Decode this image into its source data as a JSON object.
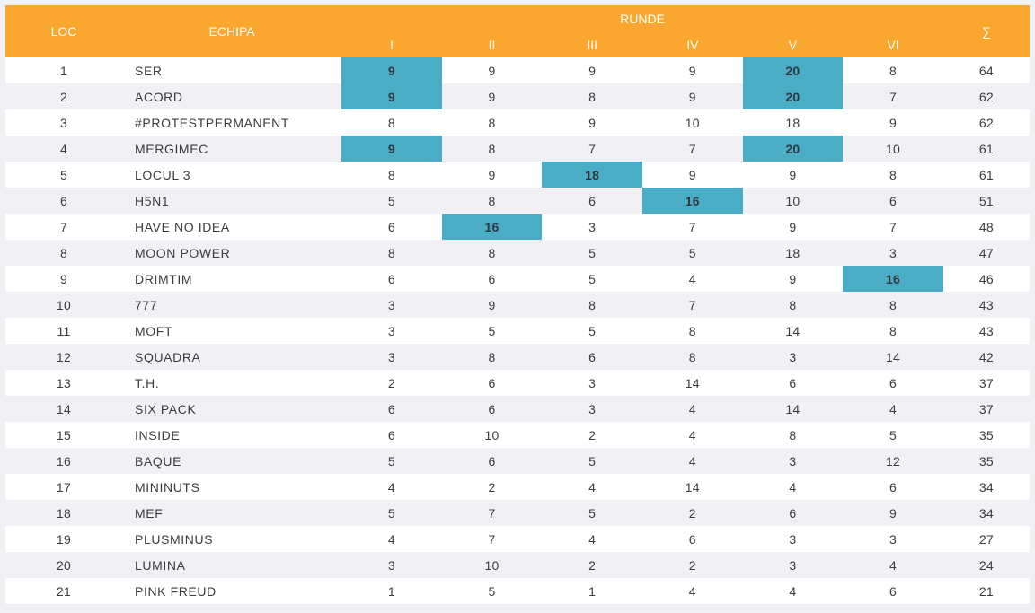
{
  "header": {
    "loc": "LOC",
    "team": "ECHIPA",
    "rounds_title": "RUNDE",
    "rounds": [
      "I",
      "II",
      "III",
      "IV",
      "V",
      "VI"
    ],
    "sum": "∑"
  },
  "colors": {
    "header_bg": "#faa72f",
    "highlight": "#4bacc6"
  },
  "rows": [
    {
      "loc": "1",
      "team": "SER",
      "scores": [
        "9",
        "9",
        "9",
        "9",
        "20",
        "8"
      ],
      "total": "64",
      "highlight": [
        0,
        4
      ]
    },
    {
      "loc": "2",
      "team": "ACORD",
      "scores": [
        "9",
        "9",
        "8",
        "9",
        "20",
        "7"
      ],
      "total": "62",
      "highlight": [
        0,
        4
      ]
    },
    {
      "loc": "3",
      "team": "#PROTESTPERMANENT",
      "scores": [
        "8",
        "8",
        "9",
        "10",
        "18",
        "9"
      ],
      "total": "62",
      "highlight": []
    },
    {
      "loc": "4",
      "team": "MERGIMEC",
      "scores": [
        "9",
        "8",
        "7",
        "7",
        "20",
        "10"
      ],
      "total": "61",
      "highlight": [
        0,
        4
      ]
    },
    {
      "loc": "5",
      "team": "LOCUL 3",
      "scores": [
        "8",
        "9",
        "18",
        "9",
        "9",
        "8"
      ],
      "total": "61",
      "highlight": [
        2
      ]
    },
    {
      "loc": "6",
      "team": "H5N1",
      "scores": [
        "5",
        "8",
        "6",
        "16",
        "10",
        "6"
      ],
      "total": "51",
      "highlight": [
        3
      ]
    },
    {
      "loc": "7",
      "team": "HAVE NO IDEA",
      "scores": [
        "6",
        "16",
        "3",
        "7",
        "9",
        "7"
      ],
      "total": "48",
      "highlight": [
        1
      ]
    },
    {
      "loc": "8",
      "team": "MOON POWER",
      "scores": [
        "8",
        "8",
        "5",
        "5",
        "18",
        "3"
      ],
      "total": "47",
      "highlight": []
    },
    {
      "loc": "9",
      "team": "DRIMTIM",
      "scores": [
        "6",
        "6",
        "5",
        "4",
        "9",
        "16"
      ],
      "total": "46",
      "highlight": [
        5
      ]
    },
    {
      "loc": "10",
      "team": "777",
      "scores": [
        "3",
        "9",
        "8",
        "7",
        "8",
        "8"
      ],
      "total": "43",
      "highlight": []
    },
    {
      "loc": "11",
      "team": "MOFT",
      "scores": [
        "3",
        "5",
        "5",
        "8",
        "14",
        "8"
      ],
      "total": "43",
      "highlight": []
    },
    {
      "loc": "12",
      "team": "SQUADRA",
      "scores": [
        "3",
        "8",
        "6",
        "8",
        "3",
        "14"
      ],
      "total": "42",
      "highlight": []
    },
    {
      "loc": "13",
      "team": "T.H.",
      "scores": [
        "2",
        "6",
        "3",
        "14",
        "6",
        "6"
      ],
      "total": "37",
      "highlight": []
    },
    {
      "loc": "14",
      "team": "SIX PACK",
      "scores": [
        "6",
        "6",
        "3",
        "4",
        "14",
        "4"
      ],
      "total": "37",
      "highlight": []
    },
    {
      "loc": "15",
      "team": "INSIDE",
      "scores": [
        "6",
        "10",
        "2",
        "4",
        "8",
        "5"
      ],
      "total": "35",
      "highlight": []
    },
    {
      "loc": "16",
      "team": "BAQUE",
      "scores": [
        "5",
        "6",
        "5",
        "4",
        "3",
        "12"
      ],
      "total": "35",
      "highlight": []
    },
    {
      "loc": "17",
      "team": "MININUTS",
      "scores": [
        "4",
        "2",
        "4",
        "14",
        "4",
        "6"
      ],
      "total": "34",
      "highlight": []
    },
    {
      "loc": "18",
      "team": "MEF",
      "scores": [
        "5",
        "7",
        "5",
        "2",
        "6",
        "9"
      ],
      "total": "34",
      "highlight": []
    },
    {
      "loc": "19",
      "team": "PLUSMINUS",
      "scores": [
        "4",
        "7",
        "4",
        "6",
        "3",
        "3"
      ],
      "total": "27",
      "highlight": []
    },
    {
      "loc": "20",
      "team": "LUMINA",
      "scores": [
        "3",
        "10",
        "2",
        "2",
        "3",
        "4"
      ],
      "total": "24",
      "highlight": []
    },
    {
      "loc": "21",
      "team": "PINK FREUD",
      "scores": [
        "1",
        "5",
        "1",
        "4",
        "4",
        "6"
      ],
      "total": "21",
      "highlight": []
    }
  ]
}
